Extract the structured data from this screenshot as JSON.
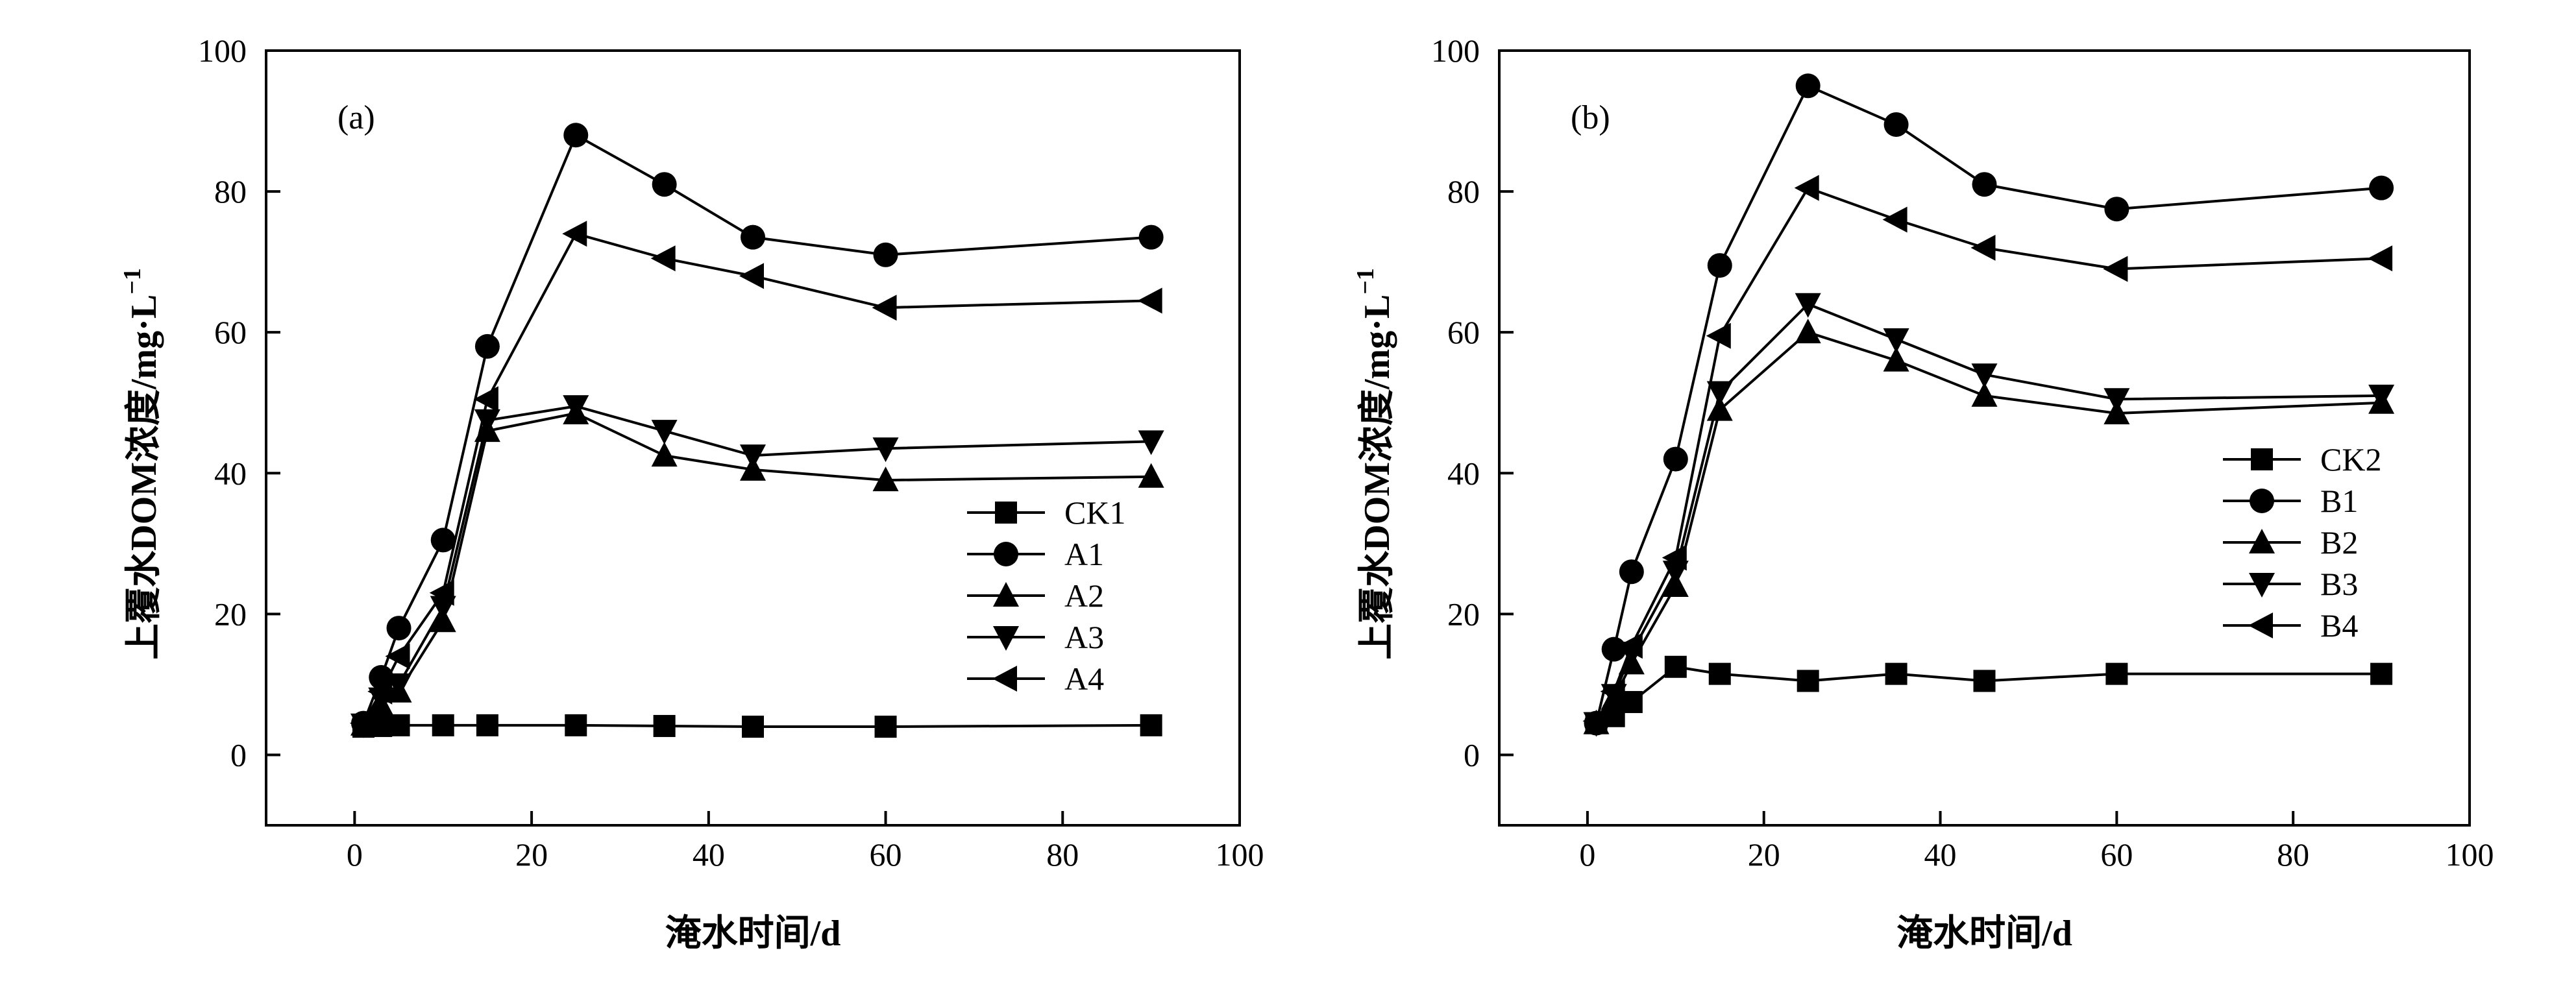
{
  "chart_data": [
    {
      "type": "line",
      "panel_label": "(a)",
      "xlabel": "淹水时间/d",
      "ylabel_main": "上覆水DOM浓度/mg·L",
      "ylabel_sup": "−1",
      "xlim": [
        -10,
        100
      ],
      "ylim": [
        -10,
        100
      ],
      "xticks": [
        0,
        20,
        40,
        60,
        80,
        100
      ],
      "yticks": [
        0,
        20,
        40,
        60,
        80,
        100
      ],
      "grid": false,
      "legend_position": "lower-right",
      "series": [
        {
          "name": "CK1",
          "marker": "square",
          "x": [
            1,
            3,
            5,
            10,
            15,
            25,
            35,
            45,
            60,
            90
          ],
          "y": [
            4,
            4.1,
            4.2,
            4.2,
            4.2,
            4.2,
            4.1,
            4.0,
            4.0,
            4.2
          ]
        },
        {
          "name": "A1",
          "marker": "circle",
          "x": [
            1,
            3,
            5,
            10,
            15,
            25,
            35,
            45,
            60,
            90
          ],
          "y": [
            4.5,
            11,
            18,
            30.5,
            58,
            88,
            81,
            73.5,
            71,
            73.5
          ]
        },
        {
          "name": "A2",
          "marker": "triangle-up",
          "x": [
            1,
            3,
            5,
            10,
            15,
            25,
            35,
            45,
            60,
            90
          ],
          "y": [
            4.3,
            7,
            9,
            19,
            46,
            48.5,
            42.5,
            40.5,
            39,
            39.5
          ]
        },
        {
          "name": "A3",
          "marker": "triangle-down",
          "x": [
            1,
            3,
            5,
            10,
            15,
            25,
            35,
            45,
            60,
            90
          ],
          "y": [
            4.3,
            8,
            10,
            21,
            47.5,
            49.5,
            46,
            42.5,
            43.5,
            44.5
          ]
        },
        {
          "name": "A4",
          "marker": "triangle-left",
          "x": [
            1,
            3,
            5,
            10,
            15,
            25,
            35,
            45,
            60,
            90
          ],
          "y": [
            4.5,
            9,
            14,
            23,
            50.5,
            74,
            70.5,
            68,
            63.5,
            64.5
          ]
        }
      ]
    },
    {
      "type": "line",
      "panel_label": "(b)",
      "xlabel": "淹水时间/d",
      "ylabel_main": "上覆水DOM浓度/mg·L",
      "ylabel_sup": "−1",
      "xlim": [
        -10,
        100
      ],
      "ylim": [
        -10,
        100
      ],
      "xticks": [
        0,
        20,
        40,
        60,
        80,
        100
      ],
      "yticks": [
        0,
        20,
        40,
        60,
        80,
        100
      ],
      "grid": false,
      "legend_position": "center-right",
      "series": [
        {
          "name": "CK2",
          "marker": "square",
          "x": [
            1,
            3,
            5,
            10,
            15,
            25,
            35,
            45,
            60,
            90
          ],
          "y": [
            4.5,
            5.5,
            7.5,
            12.5,
            11.5,
            10.5,
            11.5,
            10.5,
            11.5,
            11.5
          ]
        },
        {
          "name": "B1",
          "marker": "circle",
          "x": [
            1,
            3,
            5,
            10,
            15,
            25,
            35,
            45,
            60,
            90
          ],
          "y": [
            4.5,
            15,
            26,
            42,
            69.5,
            95,
            89.5,
            81,
            77.5,
            80.5
          ]
        },
        {
          "name": "B2",
          "marker": "triangle-up",
          "x": [
            1,
            3,
            5,
            10,
            15,
            25,
            35,
            45,
            60,
            90
          ],
          "y": [
            4.5,
            8,
            13,
            24,
            49,
            60,
            56,
            51,
            48.5,
            50
          ]
        },
        {
          "name": "B3",
          "marker": "triangle-down",
          "x": [
            1,
            3,
            5,
            10,
            15,
            25,
            35,
            45,
            60,
            90
          ],
          "y": [
            4.5,
            8.5,
            14.5,
            26,
            51.5,
            64,
            59,
            54,
            50.5,
            51
          ]
        },
        {
          "name": "B4",
          "marker": "triangle-left",
          "x": [
            1,
            3,
            5,
            10,
            15,
            25,
            35,
            45,
            60,
            90
          ],
          "y": [
            4.8,
            9,
            15.5,
            28,
            59.5,
            80.5,
            76,
            72,
            69,
            70.5
          ]
        }
      ]
    }
  ]
}
